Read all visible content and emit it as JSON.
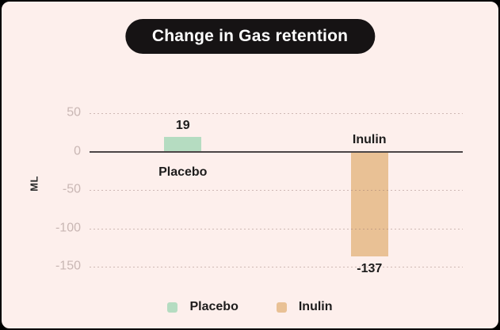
{
  "chart_data": {
    "type": "bar",
    "title": "Change in Gas retention",
    "ylabel": "ML",
    "ylim": [
      -150,
      50
    ],
    "yticks": [
      50,
      0,
      -50,
      -100,
      -150
    ],
    "categories": [
      "Placebo",
      "Inulin"
    ],
    "values": [
      19,
      -137
    ],
    "value_labels": [
      "19",
      "-137"
    ],
    "colors": [
      "#b5dcc1",
      "#e9c195"
    ],
    "grid": "dotted-horizontal",
    "legend_position": "bottom",
    "legend": [
      {
        "label": "Placebo",
        "color": "#b5dcc1"
      },
      {
        "label": "Inulin",
        "color": "#e9c195"
      }
    ],
    "accent_colors": {
      "background": "#fdefec",
      "pill_background": "#161314",
      "pill_text": "#ffffff",
      "axis_line": "#4b4546",
      "tick_text": "#c9b7b4",
      "label_text": "#1d1c1c"
    }
  }
}
